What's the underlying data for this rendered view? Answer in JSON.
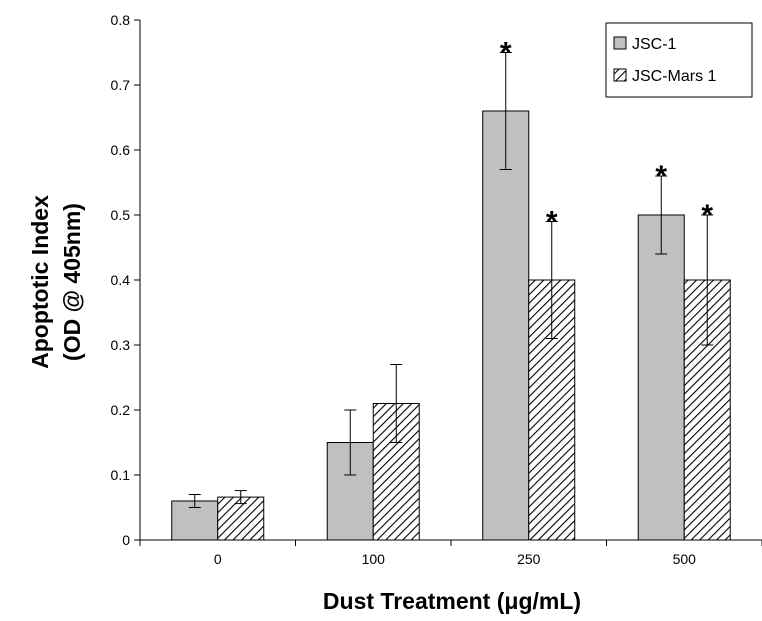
{
  "chart_data": {
    "type": "bar",
    "xlabel": "Dust Treatment (μg/mL)",
    "ylabel_line1": "Apoptotic Index",
    "ylabel_line2": "(OD @ 405nm)",
    "categories": [
      "0",
      "100",
      "250",
      "500"
    ],
    "ylim": [
      0,
      0.8
    ],
    "yticks": [
      "0",
      "0.1",
      "0.2",
      "0.3",
      "0.4",
      "0.5",
      "0.6",
      "0.7",
      "0.8"
    ],
    "grid": false,
    "legend_position": "top-right",
    "series": [
      {
        "name": "JSC-1",
        "values": [
          0.06,
          0.15,
          0.66,
          0.5
        ],
        "errors": [
          0.01,
          0.05,
          0.09,
          0.06
        ],
        "significant": [
          false,
          false,
          true,
          true
        ],
        "fill": "#c0c0c0",
        "pattern": "solid"
      },
      {
        "name": "JSC-Mars 1",
        "values": [
          0.066,
          0.21,
          0.4,
          0.4
        ],
        "errors": [
          0.01,
          0.06,
          0.09,
          0.1
        ],
        "significant": [
          false,
          false,
          true,
          true
        ],
        "fill": "#ffffff",
        "pattern": "hatched"
      }
    ],
    "significance_marker": "*"
  }
}
